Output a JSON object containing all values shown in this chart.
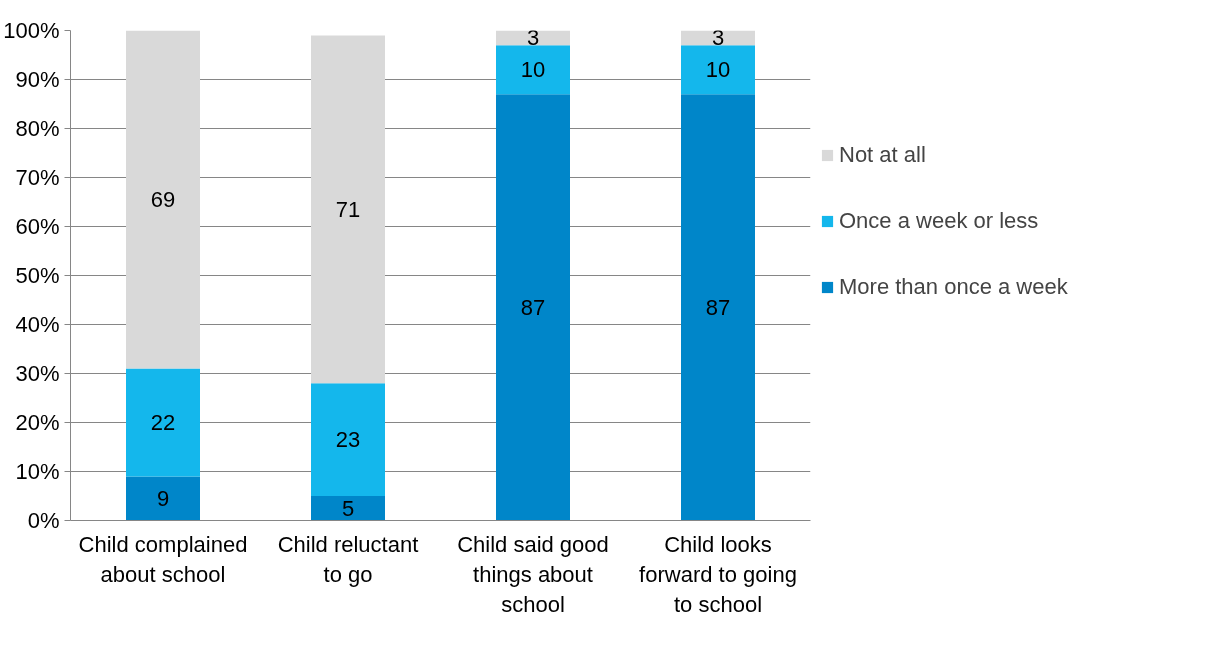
{
  "chart_data": {
    "type": "bar",
    "stacked": true,
    "categories": [
      "Child complained about school",
      "Child reluctant to go",
      "Child said good things about school",
      "Child looks forward to going to school"
    ],
    "series": [
      {
        "name": "More than once a week",
        "color": "#0086c9",
        "values": [
          9,
          5,
          87,
          87
        ]
      },
      {
        "name": "Once a week or less",
        "color": "#14b7ec",
        "values": [
          22,
          23,
          10,
          10
        ]
      },
      {
        "name": "Not at all",
        "color": "#d9d9d9",
        "values": [
          69,
          71,
          3,
          3
        ]
      }
    ],
    "ylim": [
      0,
      100
    ],
    "yticks": [
      {
        "value": 0,
        "label": "0%"
      },
      {
        "value": 10,
        "label": "10%"
      },
      {
        "value": 20,
        "label": "20%"
      },
      {
        "value": 30,
        "label": "30%"
      },
      {
        "value": 40,
        "label": "40%"
      },
      {
        "value": 50,
        "label": "50%"
      },
      {
        "value": 60,
        "label": "60%"
      },
      {
        "value": 70,
        "label": "70%"
      },
      {
        "value": 80,
        "label": "80%"
      },
      {
        "value": 90,
        "label": "90%"
      },
      {
        "value": 100,
        "label": "100%"
      }
    ],
    "grid": "y",
    "legend": "right",
    "data_labels": true
  }
}
